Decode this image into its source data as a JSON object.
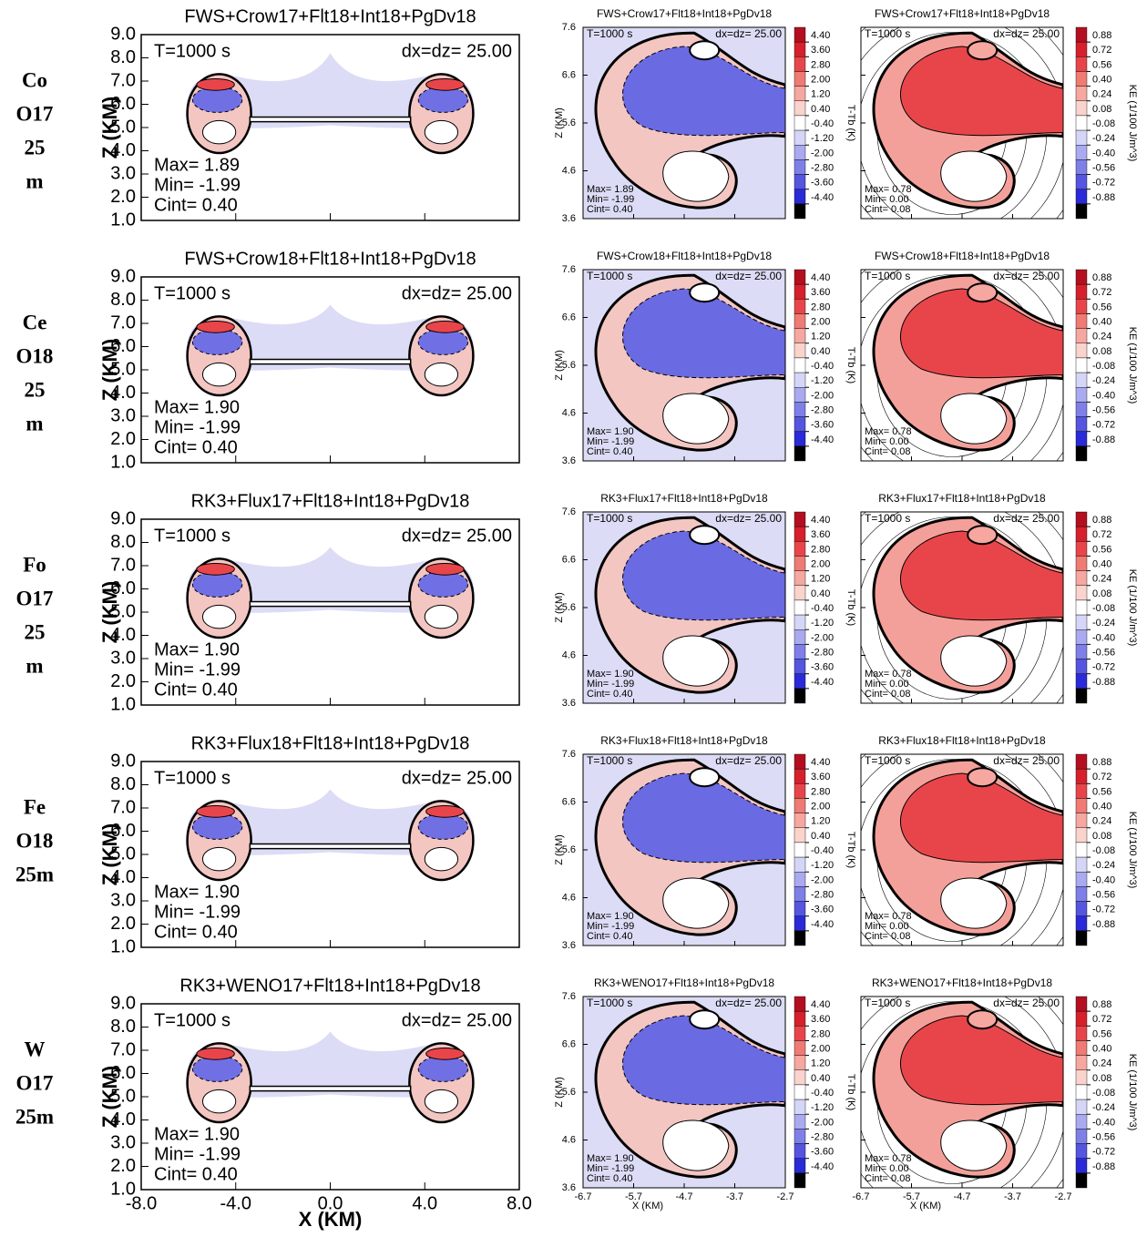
{
  "chart_data": {
    "type": "contour-panels",
    "time_label": "T=1000 s",
    "res_label": "dx=dz= 25.00",
    "z_label": "Z (KM)",
    "x_label": "X (KM)",
    "t_cbar_label": "T-Tb (K)",
    "ke_cbar_label": "KE (1/100 J/m^3)",
    "left": {
      "xlim": [
        -8,
        8
      ],
      "ylim": [
        1,
        9
      ],
      "xticks": [
        {
          "value": -8,
          "label": "-8.0"
        },
        {
          "value": -4,
          "label": "-4.0"
        },
        {
          "value": 0,
          "label": "0.0"
        },
        {
          "value": 4,
          "label": "4.0"
        },
        {
          "value": 8,
          "label": "8.0"
        }
      ],
      "yticks": [
        {
          "value": 1,
          "label": "1.0"
        },
        {
          "value": 2,
          "label": "2.0"
        },
        {
          "value": 3,
          "label": "3.0"
        },
        {
          "value": 4,
          "label": "4.0"
        },
        {
          "value": 5,
          "label": "5.0"
        },
        {
          "value": 6,
          "label": "6.0"
        },
        {
          "value": 7,
          "label": "7.0"
        },
        {
          "value": 8,
          "label": "8.0"
        },
        {
          "value": 9,
          "label": "9.0"
        }
      ]
    },
    "zoom": {
      "xlim": [
        -6.7,
        -2.7
      ],
      "ylim": [
        3.6,
        7.6
      ],
      "xticks": [
        -6.7,
        -5.7,
        -4.7,
        -3.7,
        -2.7
      ],
      "yticks": [
        3.6,
        4.6,
        5.6,
        6.6,
        7.6
      ]
    },
    "t_cbar": {
      "colors": [
        "#b40f20",
        "#d6202b",
        "#e8454a",
        "#f07a74",
        "#f6a7a0",
        "#fbd3cd",
        "#ffffff",
        "#d5d5f7",
        "#aaaaf0",
        "#7f7fe8",
        "#5555e0",
        "#2a2ad8",
        "#000000"
      ],
      "ticks": [
        {
          "value": 4.4,
          "label": "4.40"
        },
        {
          "value": 3.6,
          "label": "3.60"
        },
        {
          "value": 2.8,
          "label": "2.80"
        },
        {
          "value": 2,
          "label": "2.00"
        },
        {
          "value": 1.2,
          "label": "1.20"
        },
        {
          "value": 0.4,
          "label": "0.40"
        },
        {
          "value": -0.4,
          "label": "-0.40"
        },
        {
          "value": -1.2,
          "label": "-1.20"
        },
        {
          "value": -2,
          "label": "-2.00"
        },
        {
          "value": -2.8,
          "label": "-2.80"
        },
        {
          "value": -3.6,
          "label": "-3.60"
        },
        {
          "value": -4.4,
          "label": "-4.40"
        }
      ]
    },
    "ke_cbar": {
      "colors": [
        "#b40f20",
        "#d6202b",
        "#e8454a",
        "#f07a74",
        "#f6a7a0",
        "#fbd3cd",
        "#ffffff",
        "#d5d5f7",
        "#aaaaf0",
        "#7f7fe8",
        "#5555e0",
        "#2a2ad8",
        "#000000"
      ],
      "ticks": [
        {
          "value": 0.88,
          "label": "0.88"
        },
        {
          "value": 0.72,
          "label": "0.72"
        },
        {
          "value": 0.56,
          "label": "0.56"
        },
        {
          "value": 0.4,
          "label": "0.40"
        },
        {
          "value": 0.24,
          "label": "0.24"
        },
        {
          "value": 0.08,
          "label": "0.08"
        },
        {
          "value": -0.08,
          "label": "-0.08"
        },
        {
          "value": -0.24,
          "label": "-0.24"
        },
        {
          "value": -0.4,
          "label": "-0.40"
        },
        {
          "value": -0.56,
          "label": "-0.56"
        },
        {
          "value": -0.72,
          "label": "-0.72"
        },
        {
          "value": -0.88,
          "label": "-0.88"
        }
      ]
    },
    "rows": [
      {
        "label": [
          "Co",
          "O17",
          "25",
          "m"
        ],
        "title": "FWS+Crow17+Flt18+Int18+PgDv18",
        "t_stats": [
          "Max=  1.89",
          "Min= -1.99",
          "Cint=  0.40"
        ],
        "ke_stats": [
          "Max=  0.78",
          "Min=  0.00",
          "Cint=  0.08"
        ]
      },
      {
        "label": [
          "Ce",
          "O18",
          "25",
          "m"
        ],
        "title": "FWS+Crow18+Flt18+Int18+PgDv18",
        "t_stats": [
          "Max=  1.90",
          "Min= -1.99",
          "Cint=  0.40"
        ],
        "ke_stats": [
          "Max=  0.78",
          "Min=  0.00",
          "Cint=  0.08"
        ]
      },
      {
        "label": [
          "Fo",
          "O17",
          "25",
          "m"
        ],
        "title": "RK3+Flux17+Flt18+Int18+PgDv18",
        "t_stats": [
          "Max=  1.90",
          "Min= -1.99",
          "Cint=  0.40"
        ],
        "ke_stats": [
          "Max=  0.78",
          "Min=  0.00",
          "Cint=  0.08"
        ]
      },
      {
        "label": [
          "Fe",
          "O18",
          "25m"
        ],
        "title": "RK3+Flux18+Flt18+Int18+PgDv18",
        "t_stats": [
          "Max=  1.90",
          "Min= -1.99",
          "Cint=  0.40"
        ],
        "ke_stats": [
          "Max=  0.78",
          "Min=  0.00",
          "Cint=  0.08"
        ]
      },
      {
        "label": [
          "W",
          "O17",
          "25m"
        ],
        "title": "RK3+WENO17+Flt18+Int18+PgDv18",
        "t_stats": [
          "Max=  1.90",
          "Min= -1.99",
          "Cint=  0.40"
        ],
        "ke_stats": [
          "Max=  0.78",
          "Min=  0.00",
          "Cint=  0.08"
        ]
      }
    ]
  }
}
